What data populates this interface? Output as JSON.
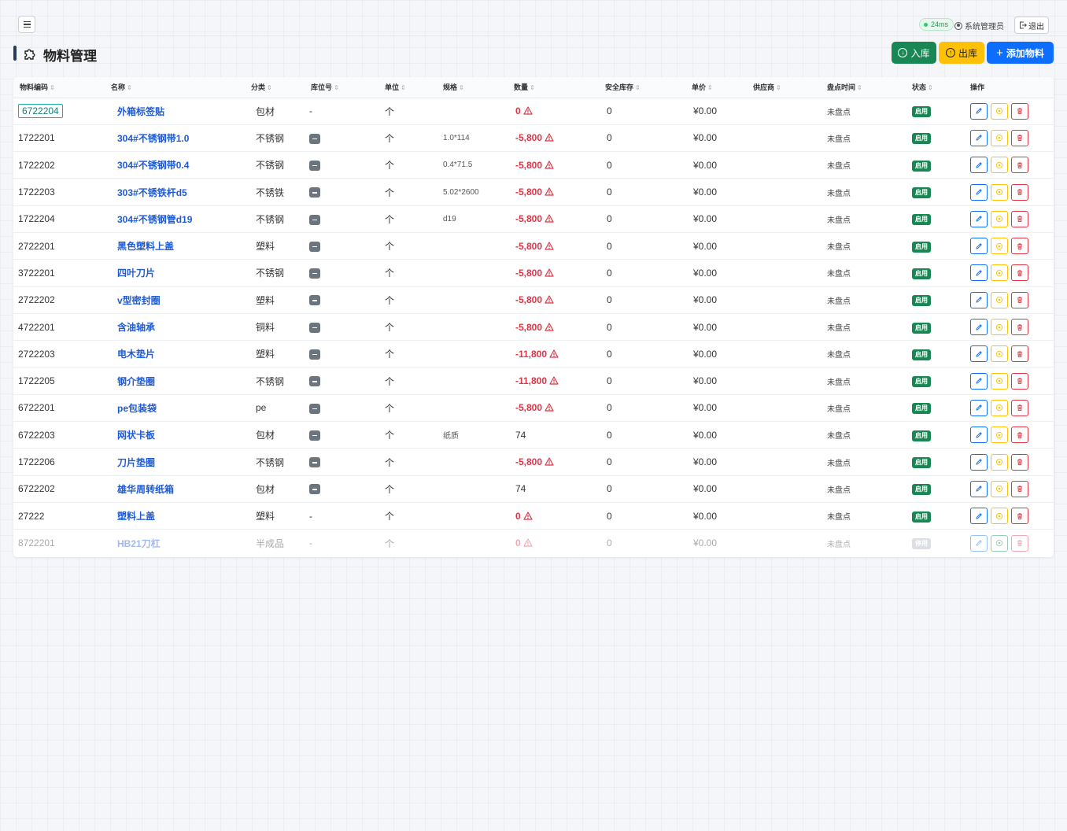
{
  "topbar": {
    "latency": "24ms",
    "user": "系统管理员",
    "logout_label": "退出"
  },
  "header": {
    "title": "物料管理",
    "title_icon": "puzzle-icon",
    "buttons": {
      "stock_in": "入库",
      "stock_out": "出库",
      "add_material": "添加物料"
    }
  },
  "table": {
    "columns": [
      "物料编码",
      "名称",
      "分类",
      "库位号",
      "单位",
      "规格",
      "数量",
      "安全库存",
      "单价",
      "供应商",
      "盘点时间",
      "状态",
      "操作"
    ],
    "sort_glyph": "⇕",
    "rows": [
      {
        "code": "6722204",
        "name": "外箱标签贴",
        "category": "包材",
        "location": "-",
        "unit": "个",
        "spec": "",
        "qty": "0",
        "safety": "0",
        "price": "¥0.00",
        "supplier": "",
        "check": "未盘点",
        "status": "启用"
      },
      {
        "code": "1722201",
        "name": "304#不锈钢带1.0",
        "category": "不锈钢",
        "location": "badge",
        "unit": "个",
        "spec": "1.0*114",
        "qty": "-5,800",
        "safety": "0",
        "price": "¥0.00",
        "supplier": "",
        "check": "未盘点",
        "status": "启用"
      },
      {
        "code": "1722202",
        "name": "304#不锈钢带0.4",
        "category": "不锈钢",
        "location": "badge",
        "unit": "个",
        "spec": "0.4*71.5",
        "qty": "-5,800",
        "safety": "0",
        "price": "¥0.00",
        "supplier": "",
        "check": "未盘点",
        "status": "启用"
      },
      {
        "code": "1722203",
        "name": "303#不锈铁杆d5",
        "category": "不锈铁",
        "location": "badge",
        "unit": "个",
        "spec": "5.02*2600",
        "qty": "-5,800",
        "safety": "0",
        "price": "¥0.00",
        "supplier": "",
        "check": "未盘点",
        "status": "启用"
      },
      {
        "code": "1722204",
        "name": "304#不锈钢管d19",
        "category": "不锈钢",
        "location": "badge",
        "unit": "个",
        "spec": "d19",
        "qty": "-5,800",
        "safety": "0",
        "price": "¥0.00",
        "supplier": "",
        "check": "未盘点",
        "status": "启用"
      },
      {
        "code": "2722201",
        "name": "黑色塑料上盖",
        "category": "塑料",
        "location": "badge",
        "unit": "个",
        "spec": "",
        "qty": "-5,800",
        "safety": "0",
        "price": "¥0.00",
        "supplier": "",
        "check": "未盘点",
        "status": "启用"
      },
      {
        "code": "3722201",
        "name": "四叶刀片",
        "category": "不锈钢",
        "location": "badge",
        "unit": "个",
        "spec": "",
        "qty": "-5,800",
        "safety": "0",
        "price": "¥0.00",
        "supplier": "",
        "check": "未盘点",
        "status": "启用"
      },
      {
        "code": "2722202",
        "name": "v型密封圈",
        "category": "塑料",
        "location": "badge",
        "unit": "个",
        "spec": "",
        "qty": "-5,800",
        "safety": "0",
        "price": "¥0.00",
        "supplier": "",
        "check": "未盘点",
        "status": "启用"
      },
      {
        "code": "4722201",
        "name": "含油轴承",
        "category": "铜料",
        "location": "badge",
        "unit": "个",
        "spec": "",
        "qty": "-5,800",
        "safety": "0",
        "price": "¥0.00",
        "supplier": "",
        "check": "未盘点",
        "status": "启用"
      },
      {
        "code": "2722203",
        "name": "电木垫片",
        "category": "塑料",
        "location": "badge",
        "unit": "个",
        "spec": "",
        "qty": "-11,800",
        "safety": "0",
        "price": "¥0.00",
        "supplier": "",
        "check": "未盘点",
        "status": "启用"
      },
      {
        "code": "1722205",
        "name": "钢介垫圈",
        "category": "不锈钢",
        "location": "badge",
        "unit": "个",
        "spec": "",
        "qty": "-11,800",
        "safety": "0",
        "price": "¥0.00",
        "supplier": "",
        "check": "未盘点",
        "status": "启用"
      },
      {
        "code": "6722201",
        "name": "pe包装袋",
        "category": "pe",
        "location": "badge",
        "unit": "个",
        "spec": "",
        "qty": "-5,800",
        "safety": "0",
        "price": "¥0.00",
        "supplier": "",
        "check": "未盘点",
        "status": "启用"
      },
      {
        "code": "6722203",
        "name": "网状卡板",
        "category": "包材",
        "location": "badge",
        "unit": "个",
        "spec": "纸质",
        "qty": "74",
        "safety": "0",
        "price": "¥0.00",
        "supplier": "",
        "check": "未盘点",
        "status": "启用"
      },
      {
        "code": "1722206",
        "name": "刀片垫圈",
        "category": "不锈钢",
        "location": "badge",
        "unit": "个",
        "spec": "",
        "qty": "-5,800",
        "safety": "0",
        "price": "¥0.00",
        "supplier": "",
        "check": "未盘点",
        "status": "启用"
      },
      {
        "code": "6722202",
        "name": "雄华周转纸箱",
        "category": "包材",
        "location": "badge",
        "unit": "个",
        "spec": "",
        "qty": "74",
        "safety": "0",
        "price": "¥0.00",
        "supplier": "",
        "check": "未盘点",
        "status": "启用"
      },
      {
        "code": "27222",
        "name": "塑料上盖",
        "category": "塑料",
        "location": "-",
        "unit": "个",
        "spec": "",
        "qty": "0",
        "safety": "0",
        "price": "¥0.00",
        "supplier": "",
        "check": "未盘点",
        "status": "启用"
      },
      {
        "code": "8722201",
        "name": "HB21刀杠",
        "category": "半成品",
        "location": "-",
        "unit": "个",
        "spec": "",
        "qty": "0",
        "safety": "0",
        "price": "¥0.00",
        "supplier": "",
        "check": "未盘点",
        "status": "停用"
      }
    ],
    "warn_rows": [
      0,
      1,
      2,
      3,
      4,
      5,
      6,
      7,
      8,
      9,
      10,
      11,
      13,
      15,
      16
    ],
    "highlight_code_row": 0
  },
  "colors": {
    "accent_blue": "#0d6efd",
    "success_green": "#198754",
    "warning_yellow": "#ffc107",
    "danger_red": "#dc3545",
    "name_link": "#1f5bd6"
  }
}
